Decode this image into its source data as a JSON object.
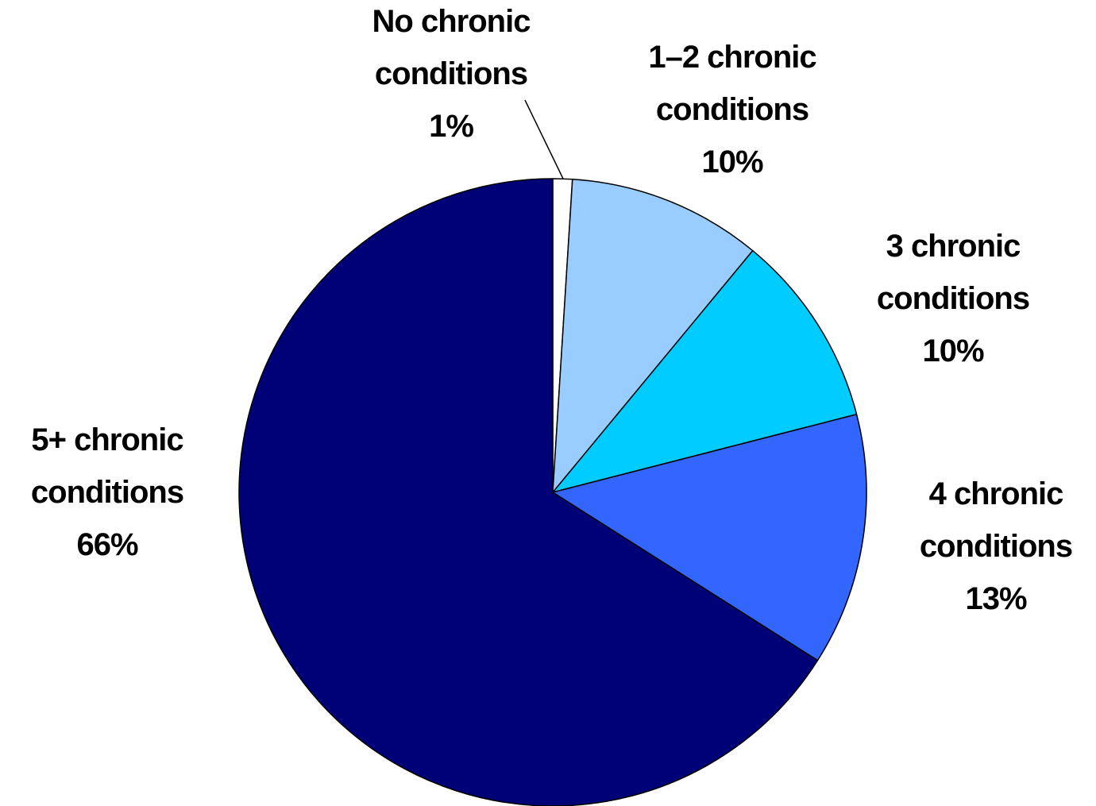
{
  "chart_data": {
    "type": "pie",
    "slices": [
      {
        "name": "No chronic conditions",
        "label_lines": [
          "No chronic",
          "conditions"
        ],
        "value": 1,
        "value_label": "1%",
        "color": "#FFFFFF"
      },
      {
        "name": "1–2 chronic conditions",
        "label_lines": [
          "1–2 chronic",
          "conditions"
        ],
        "value": 10,
        "value_label": "10%",
        "color": "#99CCFF"
      },
      {
        "name": "3 chronic conditions",
        "label_lines": [
          "3 chronic",
          "conditions"
        ],
        "value": 10,
        "value_label": "10%",
        "color": "#00CCFF"
      },
      {
        "name": "4 chronic conditions",
        "label_lines": [
          "4 chronic",
          "conditions"
        ],
        "value": 13,
        "value_label": "13%",
        "color": "#3366FF"
      },
      {
        "name": "5+ chronic conditions",
        "label_lines": [
          "5+ chronic",
          "conditions"
        ],
        "value": 66,
        "value_label": "66%",
        "color": "#000077"
      }
    ],
    "start_angle": "12 o'clock",
    "direction": "clockwise",
    "title": "",
    "legend": "none"
  }
}
